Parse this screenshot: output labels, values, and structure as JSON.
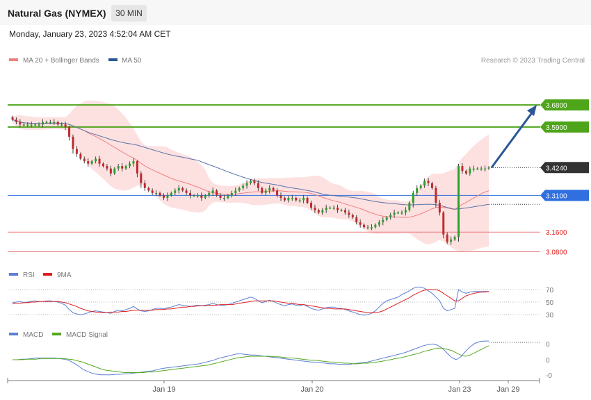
{
  "header": {
    "title": "Natural Gas (NYMEX)",
    "timeframe": "30 MIN",
    "datetime": "Monday, January 23, 2023 4:52:04 AM CET"
  },
  "legends": {
    "main": [
      {
        "label": "MA 20 + Bollinger Bands",
        "color": "#f08080"
      },
      {
        "label": "MA 50",
        "color": "#2b5797"
      }
    ],
    "copyright": "Research © 2023 Trading Central",
    "rsi": [
      {
        "label": "RSI",
        "color": "#5a7fd4"
      },
      {
        "label": "9MA",
        "color": "#e02020"
      }
    ],
    "macd": [
      {
        "label": "MACD",
        "color": "#5a7fd4"
      },
      {
        "label": "MACD Signal",
        "color": "#55a820"
      }
    ]
  },
  "colors": {
    "green_level": "#4ea51a",
    "blue_level": "#2f6fe0",
    "red_level": "#e87a7a",
    "current_price": "#333333",
    "arrow": "#2b5797",
    "candle_up": "#2ca02c",
    "candle_down": "#c0282a",
    "band_fill": "#fde1e1"
  },
  "chart_data": [
    {
      "type": "candlestick",
      "title": "Natural Gas (NYMEX)",
      "x_tick_labels": [
        "Jan 19",
        "Jan 20",
        "Jan 23",
        "Jan 29"
      ],
      "ylim": [
        3.03,
        3.74
      ],
      "price_levels": [
        {
          "label": "3.6800",
          "value": 3.68,
          "kind": "resistance"
        },
        {
          "label": "3.5900",
          "value": 3.59,
          "kind": "resistance"
        },
        {
          "label": "3.4240",
          "value": 3.424,
          "kind": "current"
        },
        {
          "label": "3.3100",
          "value": 3.31,
          "kind": "pivot"
        },
        {
          "label": "3.1600",
          "value": 3.16,
          "kind": "support"
        },
        {
          "label": "3.0800",
          "value": 3.08,
          "kind": "support"
        }
      ],
      "close": [
        3.62,
        3.61,
        3.6,
        3.6,
        3.6,
        3.6,
        3.6,
        3.6,
        3.61,
        3.61,
        3.61,
        3.61,
        3.6,
        3.6,
        3.59,
        3.55,
        3.5,
        3.48,
        3.46,
        3.45,
        3.44,
        3.45,
        3.46,
        3.44,
        3.43,
        3.42,
        3.4,
        3.42,
        3.43,
        3.42,
        3.43,
        3.44,
        3.45,
        3.4,
        3.36,
        3.34,
        3.33,
        3.32,
        3.32,
        3.31,
        3.3,
        3.31,
        3.32,
        3.33,
        3.34,
        3.33,
        3.32,
        3.31,
        3.31,
        3.31,
        3.3,
        3.31,
        3.32,
        3.33,
        3.31,
        3.3,
        3.3,
        3.31,
        3.32,
        3.33,
        3.34,
        3.35,
        3.36,
        3.37,
        3.36,
        3.34,
        3.32,
        3.33,
        3.34,
        3.33,
        3.31,
        3.3,
        3.29,
        3.3,
        3.3,
        3.29,
        3.29,
        3.3,
        3.28,
        3.26,
        3.25,
        3.24,
        3.25,
        3.26,
        3.26,
        3.26,
        3.25,
        3.25,
        3.24,
        3.23,
        3.22,
        3.2,
        3.19,
        3.18,
        3.18,
        3.18,
        3.19,
        3.2,
        3.21,
        3.22,
        3.23,
        3.24,
        3.24,
        3.24,
        3.25,
        3.28,
        3.32,
        3.34,
        3.35,
        3.37,
        3.36,
        3.34,
        3.28,
        3.24,
        3.15,
        3.12,
        3.13,
        3.14,
        3.43,
        3.41,
        3.4,
        3.42,
        3.42,
        3.42,
        3.42,
        3.42,
        3.424
      ]
    },
    {
      "type": "line",
      "title": "RSI",
      "yticks": [
        70,
        50,
        30
      ],
      "series": [
        {
          "name": "RSI",
          "values": [
            49,
            50,
            51,
            49,
            50,
            51,
            52,
            51,
            51,
            52,
            52,
            51,
            50,
            48,
            45,
            38,
            33,
            31,
            30,
            31,
            33,
            35,
            36,
            35,
            34,
            33,
            32,
            35,
            37,
            36,
            38,
            40,
            43,
            39,
            36,
            35,
            36,
            38,
            40,
            40,
            39,
            41,
            42,
            44,
            46,
            45,
            44,
            43,
            44,
            45,
            44,
            45,
            46,
            48,
            46,
            45,
            45,
            46,
            48,
            50,
            52,
            54,
            56,
            58,
            56,
            52,
            49,
            51,
            53,
            51,
            48,
            46,
            44,
            46,
            47,
            45,
            44,
            46,
            43,
            40,
            38,
            37,
            39,
            41,
            42,
            42,
            40,
            40,
            38,
            36,
            34,
            32,
            30,
            29,
            30,
            32,
            36,
            42,
            48,
            52,
            54,
            56,
            58,
            62,
            65,
            68,
            72,
            74,
            74,
            72,
            68,
            64,
            58,
            52,
            40,
            36,
            38,
            40,
            70,
            66,
            64,
            66,
            67,
            67,
            67,
            67,
            67
          ]
        },
        {
          "name": "9MA",
          "values": [
            47,
            48,
            48,
            49,
            49,
            50,
            50,
            51,
            51,
            51,
            51,
            51,
            51,
            50,
            49,
            47,
            45,
            43,
            40,
            38,
            36,
            35,
            34,
            33,
            33,
            33,
            34,
            34,
            34,
            35,
            35,
            36,
            37,
            37,
            37,
            37,
            37,
            37,
            38,
            38,
            38,
            39,
            39,
            40,
            41,
            42,
            42,
            43,
            43,
            44,
            44,
            44,
            45,
            45,
            45,
            46,
            46,
            46,
            46,
            47,
            48,
            49,
            50,
            51,
            52,
            52,
            52,
            52,
            52,
            52,
            51,
            50,
            49,
            48,
            48,
            47,
            46,
            46,
            45,
            44,
            43,
            42,
            41,
            40,
            40,
            39,
            39,
            39,
            39,
            38,
            37,
            36,
            35,
            34,
            33,
            33,
            33,
            34,
            36,
            39,
            42,
            45,
            48,
            51,
            54,
            57,
            61,
            64,
            67,
            69,
            70,
            70,
            70,
            68,
            64,
            60,
            56,
            52,
            52,
            56,
            60,
            62,
            64,
            65,
            66,
            66,
            67
          ]
        }
      ]
    },
    {
      "type": "line",
      "title": "MACD",
      "ytick_labels": [
        "0",
        "0",
        "-0"
      ],
      "series": [
        {
          "name": "MACD",
          "values": [
            0.0,
            0.0,
            0.001,
            0.001,
            0.002,
            0.003,
            0.003,
            0.003,
            0.003,
            0.003,
            0.002,
            0.001,
            -0.001,
            -0.005,
            -0.01,
            -0.016,
            -0.02,
            -0.023,
            -0.025,
            -0.026,
            -0.026,
            -0.026,
            -0.025,
            -0.025,
            -0.024,
            -0.024,
            -0.023,
            -0.022,
            -0.021,
            -0.02,
            -0.019,
            -0.017,
            -0.015,
            -0.014,
            -0.013,
            -0.012,
            -0.011,
            -0.01,
            -0.009,
            -0.008,
            -0.007,
            -0.005,
            -0.003,
            -0.001,
            0.002,
            0.004,
            0.006,
            0.008,
            0.01,
            0.01,
            0.009,
            0.008,
            0.008,
            0.007,
            0.006,
            0.005,
            0.004,
            0.003,
            0.002,
            0.001,
            0.0,
            -0.001,
            -0.002,
            -0.003,
            -0.004,
            -0.004,
            -0.005,
            -0.006,
            -0.007,
            -0.007,
            -0.008,
            -0.008,
            -0.008,
            -0.007,
            -0.006,
            -0.005,
            -0.004,
            -0.002,
            0.0,
            0.002,
            0.004,
            0.006,
            0.008,
            0.01,
            0.012,
            0.015,
            0.018,
            0.021,
            0.024,
            0.026,
            0.027,
            0.025,
            0.02,
            0.012,
            0.004,
            0.0,
            0.005,
            0.014,
            0.022,
            0.028,
            0.031,
            0.032,
            0.032
          ]
        },
        {
          "name": "MACD Signal",
          "values": [
            0.0,
            0.0,
            0.0,
            0.001,
            0.001,
            0.001,
            0.002,
            0.002,
            0.002,
            0.002,
            0.002,
            0.002,
            0.001,
            0.0,
            -0.002,
            -0.004,
            -0.007,
            -0.01,
            -0.013,
            -0.016,
            -0.018,
            -0.019,
            -0.02,
            -0.021,
            -0.022,
            -0.022,
            -0.022,
            -0.022,
            -0.022,
            -0.021,
            -0.021,
            -0.02,
            -0.019,
            -0.018,
            -0.017,
            -0.016,
            -0.015,
            -0.014,
            -0.013,
            -0.012,
            -0.011,
            -0.01,
            -0.009,
            -0.007,
            -0.005,
            -0.003,
            -0.001,
            0.001,
            0.003,
            0.004,
            0.005,
            0.006,
            0.006,
            0.006,
            0.006,
            0.006,
            0.005,
            0.005,
            0.004,
            0.003,
            0.003,
            0.002,
            0.001,
            0.0,
            -0.001,
            -0.001,
            -0.002,
            -0.003,
            -0.004,
            -0.004,
            -0.005,
            -0.006,
            -0.006,
            -0.007,
            -0.007,
            -0.006,
            -0.006,
            -0.005,
            -0.004,
            -0.003,
            -0.001,
            0.0,
            0.002,
            0.003,
            0.005,
            0.007,
            0.009,
            0.011,
            0.014,
            0.016,
            0.018,
            0.02,
            0.02,
            0.018,
            0.016,
            0.012,
            0.008,
            0.006,
            0.008,
            0.012,
            0.016,
            0.02,
            0.024
          ]
        }
      ]
    }
  ]
}
